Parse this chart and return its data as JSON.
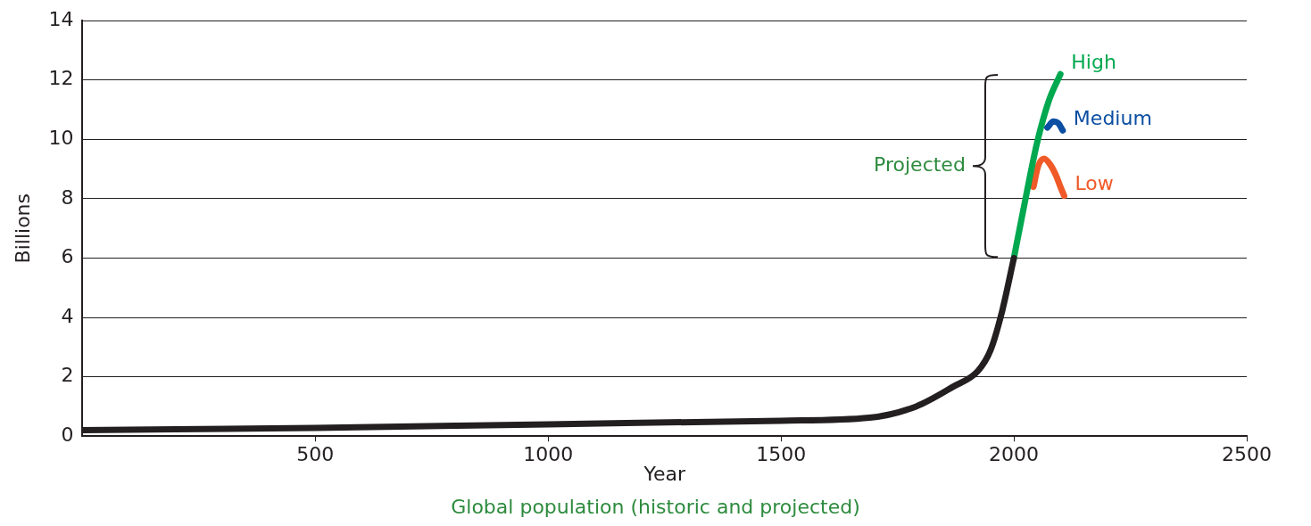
{
  "chart_data": {
    "type": "line",
    "title": "Global population (historic and projected)",
    "xlabel": "Year",
    "ylabel": "Billions",
    "xlim": [
      0,
      2500
    ],
    "xticks": [
      500,
      1000,
      1500,
      2000,
      2500
    ],
    "ylim": [
      0,
      14
    ],
    "yticks": [
      0,
      2,
      4,
      6,
      8,
      10,
      12,
      14
    ],
    "grid": "y",
    "legend": false,
    "marker": "none",
    "line_style": "solid",
    "annotations": [
      "Projected"
    ],
    "series": [
      {
        "color": "#231f20",
        "x": [
          0,
          500,
          1000,
          1500,
          1690,
          1790,
          1870,
          1923,
          1950,
          1973,
          2000
        ],
        "values": [
          0.2,
          0.28,
          0.4,
          0.52,
          0.62,
          1.0,
          1.67,
          2.2,
          2.9,
          4.1,
          6.0
        ]
      },
      {
        "name": "High",
        "color": "#00a84f",
        "x": [
          2000,
          2025,
          2050,
          2075,
          2100
        ],
        "values": [
          6.0,
          8.0,
          9.9,
          11.3,
          12.2
        ]
      },
      {
        "name": "Medium",
        "color": "#0b4ea2",
        "x": [
          2072,
          2085,
          2095,
          2105
        ],
        "values": [
          10.4,
          10.6,
          10.55,
          10.3
        ]
      },
      {
        "name": "Low",
        "color": "#f05a28",
        "x": [
          2042,
          2052,
          2065,
          2078,
          2090,
          2100,
          2108
        ],
        "values": [
          8.4,
          9.1,
          9.35,
          9.15,
          8.8,
          8.4,
          8.1
        ]
      }
    ]
  }
}
